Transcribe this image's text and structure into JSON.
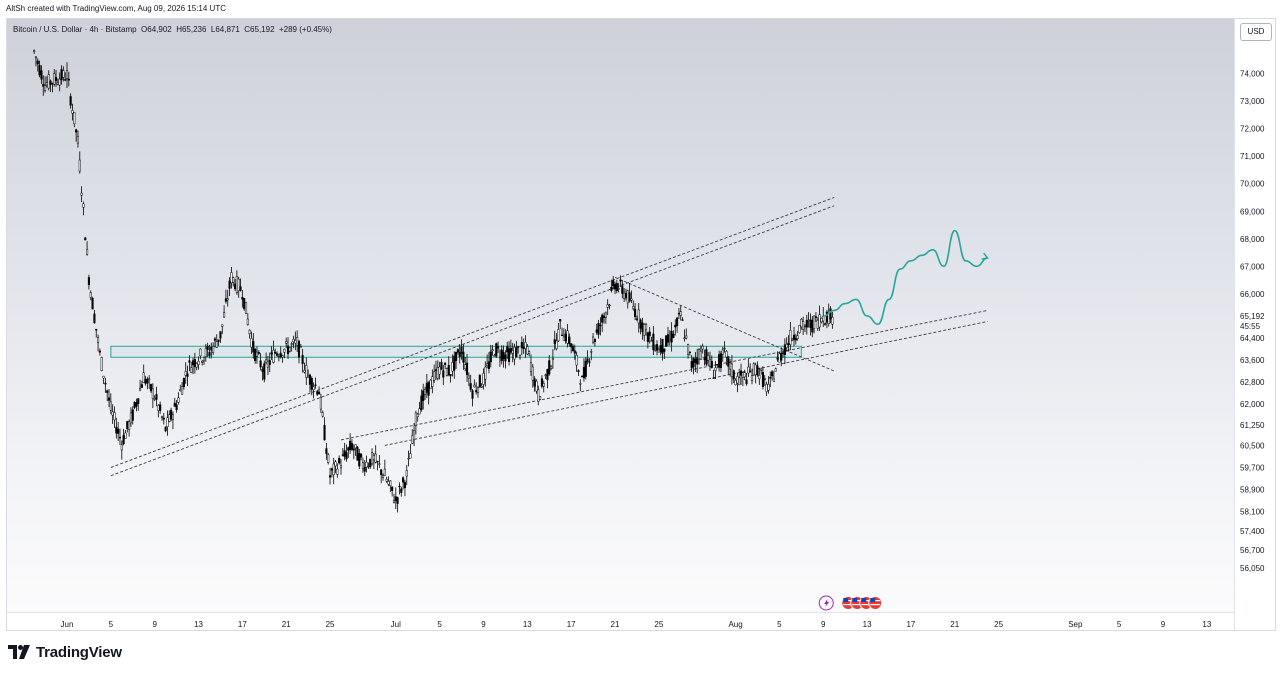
{
  "header": {
    "attribution": "AltSh created with TradingView.com, Aug 09, 2026 15:14 UTC"
  },
  "legend": {
    "symbol": "Bitcoin / U.S. Dollar · 4h · Bitstamp",
    "open": "O64,902",
    "high": "H65,236",
    "low": "L64,871",
    "close": "C65,192",
    "change": "+289 (+0.45%)"
  },
  "price_axis": {
    "currency_button": "USD",
    "last_price": "65,192",
    "countdown": "45:55"
  },
  "footer": {
    "brand": "TradingView"
  },
  "colors": {
    "projection": "#26a69a",
    "zone": "#26a69a",
    "candle": "#000000",
    "last_price_badge": "#ffffff"
  },
  "icons": [
    "tradingview-logo-icon",
    "events-lightning-icon",
    "us-flag-icon"
  ],
  "chart_data": {
    "type": "candlestick",
    "title": "Bitcoin / U.S. Dollar · 4h · Bitstamp",
    "ylim": [
      55700,
      75000
    ],
    "y_ticks": [
      "74,000",
      "73,000",
      "72,000",
      "71,000",
      "70,000",
      "69,000",
      "68,000",
      "67,000",
      "66,000",
      "64,400",
      "63,600",
      "62,800",
      "62,000",
      "61,250",
      "60,500",
      "59,700",
      "58,900",
      "58,100",
      "57,400",
      "56,700",
      "56,050"
    ],
    "x_ticks": [
      "Jun",
      "5",
      "9",
      "13",
      "17",
      "21",
      "25",
      "Jul",
      "5",
      "9",
      "13",
      "17",
      "21",
      "25",
      "Aug",
      "5",
      "9",
      "13",
      "17",
      "21",
      "25",
      "Sep",
      "5",
      "9",
      "13"
    ],
    "series": [
      {
        "name": "price",
        "points": [
          [
            "May 29",
            74800
          ],
          [
            "May 30",
            73600
          ],
          [
            "May 31",
            73800
          ],
          [
            "Jun 1",
            73950
          ],
          [
            "Jun 2",
            71500
          ],
          [
            "Jun 3",
            66600
          ],
          [
            "Jun 4",
            63800
          ],
          [
            "Jun 5",
            61800
          ],
          [
            "Jun 6",
            60600
          ],
          [
            "Jun 7",
            61600
          ],
          [
            "Jun 8",
            63000
          ],
          [
            "Jun 9",
            62300
          ],
          [
            "Jun 10",
            61100
          ],
          [
            "Jun 11",
            62000
          ],
          [
            "Jun 12",
            63300
          ],
          [
            "Jun 13",
            63700
          ],
          [
            "Jun 14",
            63900
          ],
          [
            "Jun 15",
            64500
          ],
          [
            "Jun 16",
            66600
          ],
          [
            "Jun 17",
            66100
          ],
          [
            "Jun 18",
            64000
          ],
          [
            "Jun 19",
            63200
          ],
          [
            "Jun 20",
            63900
          ],
          [
            "Jun 21",
            64000
          ],
          [
            "Jun 22",
            64200
          ],
          [
            "Jun 23",
            63000
          ],
          [
            "Jun 24",
            62500
          ],
          [
            "Jun 25",
            59400
          ],
          [
            "Jun 26",
            59900
          ],
          [
            "Jun 27",
            60500
          ],
          [
            "Jun 28",
            59800
          ],
          [
            "Jun 29",
            60000
          ],
          [
            "Jun 30",
            59400
          ],
          [
            "Jul 1",
            58500
          ],
          [
            "Jul 2",
            59400
          ],
          [
            "Jul 3",
            61800
          ],
          [
            "Jul 4",
            62600
          ],
          [
            "Jul 5",
            63300
          ],
          [
            "Jul 6",
            63200
          ],
          [
            "Jul 7",
            64000
          ],
          [
            "Jul 8",
            62500
          ],
          [
            "Jul 9",
            62900
          ],
          [
            "Jul 10",
            64000
          ],
          [
            "Jul 11",
            63800
          ],
          [
            "Jul 12",
            63900
          ],
          [
            "Jul 13",
            64000
          ],
          [
            "Jul 14",
            62300
          ],
          [
            "Jul 15",
            63300
          ],
          [
            "Jul 16",
            64800
          ],
          [
            "Jul 17",
            64200
          ],
          [
            "Jul 18",
            62800
          ],
          [
            "Jul 19",
            64300
          ],
          [
            "Jul 20",
            65200
          ],
          [
            "Jul 21",
            66400
          ],
          [
            "Jul 22",
            66000
          ],
          [
            "Jul 23",
            65300
          ],
          [
            "Jul 24",
            64500
          ],
          [
            "Jul 25",
            64000
          ],
          [
            "Jul 26",
            64300
          ],
          [
            "Jul 27",
            65200
          ],
          [
            "Jul 28",
            63400
          ],
          [
            "Jul 29",
            64000
          ],
          [
            "Jul 30",
            63200
          ],
          [
            "Jul 31",
            63800
          ],
          [
            "Aug 1",
            62900
          ],
          [
            "Aug 2",
            63000
          ],
          [
            "Aug 3",
            63300
          ],
          [
            "Aug 4",
            62500
          ],
          [
            "Aug 5",
            63700
          ],
          [
            "Aug 6",
            64400
          ],
          [
            "Aug 7",
            64800
          ],
          [
            "Aug 8",
            64900
          ],
          [
            "Aug 9",
            65192
          ]
        ]
      },
      {
        "name": "projection",
        "points": [
          [
            "Aug 10",
            65400
          ],
          [
            "Aug 11",
            65650
          ],
          [
            "Aug 12",
            65800
          ],
          [
            "Aug 13",
            65200
          ],
          [
            "Aug 14",
            64900
          ],
          [
            "Aug 15",
            65800
          ],
          [
            "Aug 16",
            66900
          ],
          [
            "Aug 17",
            67200
          ],
          [
            "Aug 18",
            67400
          ],
          [
            "Aug 19",
            67600
          ],
          [
            "Aug 20",
            67000
          ],
          [
            "Aug 21",
            68300
          ],
          [
            "Aug 22",
            67200
          ],
          [
            "Aug 23",
            67000
          ],
          [
            "Aug 24",
            67300
          ]
        ]
      }
    ],
    "annotations": [
      {
        "type": "zone",
        "y": [
          63700,
          64100
        ],
        "x": [
          "Jun 5",
          "Aug 7"
        ]
      },
      {
        "type": "trendline",
        "from": [
          "Jun 5",
          59700
        ],
        "to": [
          "Aug 10",
          69500
        ]
      },
      {
        "type": "trendline",
        "from": [
          "Jun 5",
          59400
        ],
        "to": [
          "Aug 10",
          69200
        ]
      },
      {
        "type": "trendline",
        "from": [
          "Jun 26",
          60700
        ],
        "to": [
          "Aug 24",
          65400
        ]
      },
      {
        "type": "trendline",
        "from": [
          "Jun 30",
          60500
        ],
        "to": [
          "Aug 24",
          65000
        ]
      },
      {
        "type": "trendline",
        "from": [
          "Jul 21",
          66600
        ],
        "to": [
          "Aug 10",
          63200
        ]
      }
    ]
  }
}
